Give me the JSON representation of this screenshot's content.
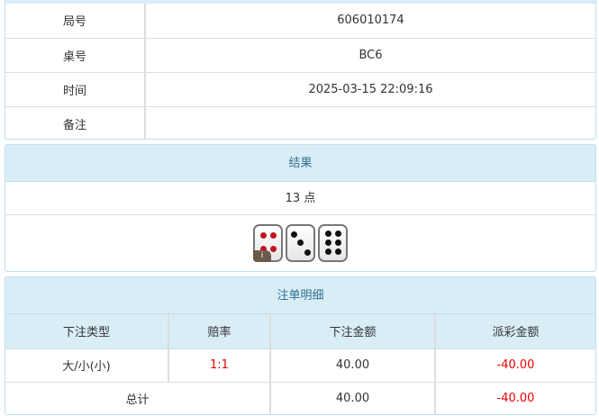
{
  "info": [
    {
      "label": "局号",
      "value": "606010174"
    },
    {
      "label": "桌号",
      "value": "BC6"
    },
    {
      "label": "时间",
      "value": "2025-03-15 22:09:16"
    },
    {
      "label": "备注",
      "value": ""
    }
  ],
  "result": {
    "title": "结果",
    "points": "13 点",
    "dice": [
      4,
      3,
      6
    ],
    "badge": "i"
  },
  "bets": {
    "title": "注单明细",
    "headers": [
      "下注类型",
      "赔率",
      "下注金额",
      "派彩金额"
    ],
    "rows": [
      {
        "type": "大/小(小)",
        "odds": "1:1",
        "amount": "40.00",
        "payout": "-40.00"
      }
    ],
    "total": {
      "label": "总计",
      "amount": "40.00",
      "payout": "-40.00"
    }
  },
  "colors": {
    "header_bg": "#d9edf7",
    "header_text": "#31708f",
    "negative": "#e00000"
  }
}
